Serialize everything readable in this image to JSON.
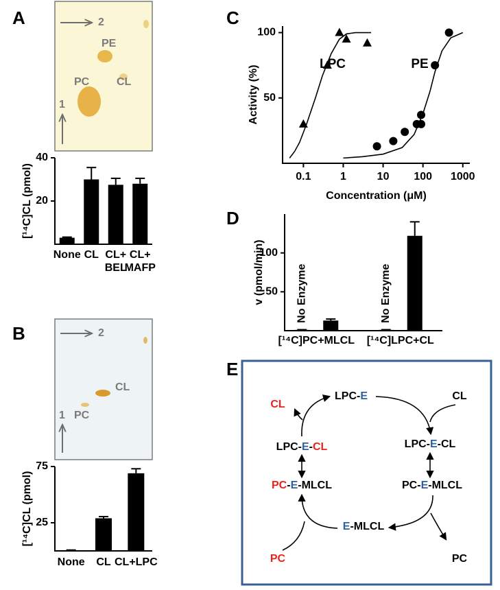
{
  "panel_labels": [
    "A",
    "B",
    "C",
    "D",
    "E"
  ],
  "tlc": [
    {
      "first": "1",
      "second": "2",
      "spots": [
        "PE",
        "PC",
        "CL"
      ]
    },
    {
      "first": "1",
      "second": "2",
      "spots": [
        "CL",
        "PC"
      ]
    }
  ],
  "chart_data": [
    {
      "type": "bar",
      "y_label": "[¹⁴C]CL (pmol)",
      "categories": [
        "None",
        "CL",
        "CL+\nBEL",
        "CL+\nMAFP"
      ],
      "values": [
        3,
        30,
        27.5,
        28
      ],
      "errors": [
        0.3,
        5.5,
        3,
        2.5
      ],
      "color": "#000000",
      "ylim": [
        0,
        40
      ],
      "yticks": [
        20,
        40
      ]
    },
    {
      "type": "bar",
      "y_label": "[¹⁴C]CL (pmol)",
      "categories": [
        "None",
        "CL",
        "CL+LPC"
      ],
      "values": [
        0.5,
        29,
        69
      ],
      "errors": [
        0.3,
        1.5,
        4
      ],
      "color": "#000000",
      "ylim": [
        0,
        75
      ],
      "yticks": [
        25,
        75
      ]
    },
    {
      "type": "scatter",
      "x_label": "Concentration (μM)",
      "y_label": "Activity (%)",
      "log_x": true,
      "xlim": [
        0.03,
        1500
      ],
      "xticks": [
        0.1,
        1,
        10,
        100,
        1000
      ],
      "ylim": [
        0,
        105
      ],
      "yticks": [
        50,
        100
      ],
      "series": [
        {
          "name": "LPC",
          "marker": "triangle",
          "color": "#000000",
          "x": [
            0.1,
            0.4,
            0.8,
            1.2,
            4
          ],
          "values": [
            30,
            75,
            100,
            95,
            92
          ],
          "fit_x": [
            0.045,
            0.06,
            0.08,
            0.12,
            0.2,
            0.3,
            0.5,
            0.8,
            1.2,
            2,
            5
          ],
          "fit_values": [
            4,
            9,
            16,
            30,
            50,
            67,
            84,
            95,
            99,
            100,
            100
          ]
        },
        {
          "name": "PE",
          "marker": "circle",
          "color": "#000000",
          "x": [
            7,
            18,
            35,
            70,
            90,
            90,
            200,
            450
          ],
          "values": [
            13,
            17,
            24,
            30,
            37,
            30,
            75,
            100
          ],
          "fit_x": [
            1,
            3,
            10,
            30,
            60,
            100,
            150,
            200,
            300,
            500,
            1000
          ],
          "fit_values": [
            4,
            5,
            7,
            12,
            22,
            38,
            55,
            70,
            86,
            96,
            100
          ]
        }
      ]
    },
    {
      "type": "bar",
      "y_label": "v (pmol/min)",
      "categories": [
        "[¹⁴C]PC+MLCL",
        "[¹⁴C]LPC+CL"
      ],
      "series": [
        {
          "name": "No Enzyme",
          "color": "#000000",
          "values": [
            1,
            1
          ],
          "errors": [
            0.3,
            0.3
          ]
        },
        {
          "color": "#000000",
          "values": [
            13,
            122
          ],
          "errors": [
            2,
            18
          ]
        }
      ],
      "ylim": [
        0,
        150
      ],
      "yticks": [
        50,
        100
      ]
    }
  ],
  "diagram": {
    "nodes": [
      {
        "parts": [
          {
            "text": "CL",
            "color": "#e8231e"
          }
        ]
      },
      {
        "parts": [
          {
            "text": "LPC-",
            "color": "#000000"
          },
          {
            "text": "E",
            "color": "#2e5f9e"
          }
        ]
      },
      {
        "parts": [
          {
            "text": "CL",
            "color": "#000000"
          }
        ]
      },
      {
        "parts": [
          {
            "text": "LPC-",
            "color": "#000000"
          },
          {
            "text": "E",
            "color": "#2e5f9e"
          },
          {
            "text": "-",
            "color": "#000000"
          },
          {
            "text": "CL",
            "color": "#e8231e"
          }
        ]
      },
      {
        "parts": [
          {
            "text": "LPC-",
            "color": "#000000"
          },
          {
            "text": "E",
            "color": "#2e5f9e"
          },
          {
            "text": "-CL",
            "color": "#000000"
          }
        ]
      },
      {
        "parts": [
          {
            "text": "PC",
            "color": "#e8231e"
          },
          {
            "text": "-",
            "color": "#000000"
          },
          {
            "text": "E",
            "color": "#2e5f9e"
          },
          {
            "text": "-MLCL",
            "color": "#000000"
          }
        ]
      },
      {
        "parts": [
          {
            "text": "PC-",
            "color": "#000000"
          },
          {
            "text": "E",
            "color": "#2e5f9e"
          },
          {
            "text": "-MLCL",
            "color": "#000000"
          }
        ]
      },
      {
        "parts": [
          {
            "text": "E",
            "color": "#2e5f9e"
          },
          {
            "text": "-MLCL",
            "color": "#000000"
          }
        ]
      },
      {
        "parts": [
          {
            "text": "PC",
            "color": "#e8231e"
          }
        ]
      },
      {
        "parts": [
          {
            "text": "PC",
            "color": "#000000"
          }
        ]
      }
    ]
  }
}
